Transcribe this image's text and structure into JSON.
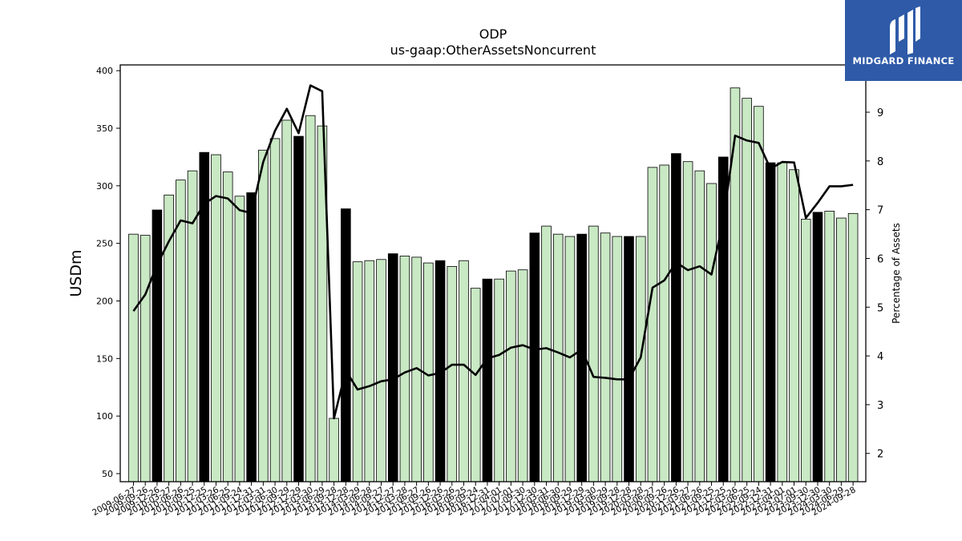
{
  "chart_data": {
    "type": "bar",
    "title": "ODP",
    "subtitle": "us-gaap:OtherAssetsNoncurrent",
    "ylabel": "USDm",
    "y2label": "Percentage of Assets",
    "ylim": [
      43,
      405
    ],
    "y2lim": [
      1.42,
      9.97
    ],
    "yticks": [
      50,
      100,
      150,
      200,
      250,
      300,
      350,
      400
    ],
    "y2ticks": [
      2,
      3,
      4,
      5,
      6,
      7,
      8,
      9
    ],
    "bar_color": "#c9e8c4",
    "highlight_color": "#000000",
    "line_color": "#000000",
    "categories": [
      "2009-06-27",
      "2009-09-26",
      "2009-12-26",
      "2010-03-27",
      "2010-06-26",
      "2010-09-25",
      "2010-12-25",
      "2011-03-26",
      "2011-06-25",
      "2011-09-24",
      "2011-12-31",
      "2012-03-31",
      "2012-06-30",
      "2012-09-29",
      "2012-12-29",
      "2013-03-30",
      "2013-06-29",
      "2013-09-28",
      "2013-12-28",
      "2014-03-29",
      "2014-06-28",
      "2014-09-27",
      "2014-12-27",
      "2015-03-28",
      "2015-06-27",
      "2015-09-26",
      "2015-12-26",
      "2016-03-26",
      "2016-06-25",
      "2016-09-24",
      "2016-12-31",
      "2017-04-01",
      "2017-07-01",
      "2017-09-30",
      "2017-12-30",
      "2018-03-31",
      "2018-06-30",
      "2018-09-29",
      "2018-12-29",
      "2019-03-30",
      "2019-06-29",
      "2019-09-28",
      "2019-12-28",
      "2020-03-28",
      "2020-06-27",
      "2020-09-26",
      "2020-12-26",
      "2021-03-27",
      "2021-06-26",
      "2021-09-25",
      "2021-12-25",
      "2022-03-26",
      "2022-06-25",
      "2022-09-24",
      "2022-12-31",
      "2023-04-01",
      "2023-07-01",
      "2023-09-30",
      "2023-12-30",
      "2024-03-30",
      "2024-06-29",
      "2024-09-28"
    ],
    "values": [
      258,
      257,
      279,
      292,
      305,
      313,
      329,
      327,
      312,
      291,
      294,
      331,
      341,
      357,
      343,
      361,
      352,
      98,
      280,
      234,
      235,
      236,
      241,
      239,
      238,
      233,
      235,
      230,
      235,
      211,
      219,
      219,
      226,
      227,
      259,
      265,
      258,
      256,
      258,
      265,
      259,
      256,
      256,
      256,
      316,
      318,
      328,
      321,
      313,
      302,
      325,
      385,
      376,
      369,
      320,
      320,
      314,
      271,
      277,
      278,
      272,
      276
    ],
    "highlight": [
      false,
      false,
      true,
      false,
      false,
      false,
      true,
      false,
      false,
      false,
      true,
      false,
      false,
      false,
      true,
      false,
      false,
      false,
      true,
      false,
      false,
      false,
      true,
      false,
      false,
      false,
      true,
      false,
      false,
      false,
      true,
      false,
      false,
      false,
      true,
      false,
      false,
      false,
      true,
      false,
      false,
      false,
      true,
      false,
      false,
      false,
      true,
      false,
      false,
      false,
      true,
      false,
      false,
      false,
      true,
      false,
      false,
      false,
      true,
      false,
      false,
      false
    ],
    "series": [
      {
        "values": [
          4.92,
          5.26,
          5.87,
          6.35,
          6.78,
          6.72,
          7.12,
          7.28,
          7.23,
          6.99,
          6.93,
          7.98,
          8.62,
          9.07,
          8.57,
          9.55,
          9.43,
          2.72,
          3.7,
          3.31,
          3.38,
          3.48,
          3.52,
          3.66,
          3.75,
          3.6,
          3.65,
          3.82,
          3.82,
          3.61,
          3.95,
          4.02,
          4.17,
          4.22,
          4.13,
          4.16,
          4.07,
          3.97,
          4.13,
          3.57,
          3.55,
          3.52,
          3.52,
          3.97,
          5.4,
          5.55,
          5.92,
          5.76,
          5.84,
          5.67,
          6.78,
          8.52,
          8.42,
          8.37,
          7.84,
          7.98,
          7.97,
          6.83,
          7.14,
          7.48,
          7.48,
          7.51
        ]
      }
    ]
  },
  "logo": {
    "text": "MIDGARD FINANCE",
    "color": "#2e5aa8"
  }
}
